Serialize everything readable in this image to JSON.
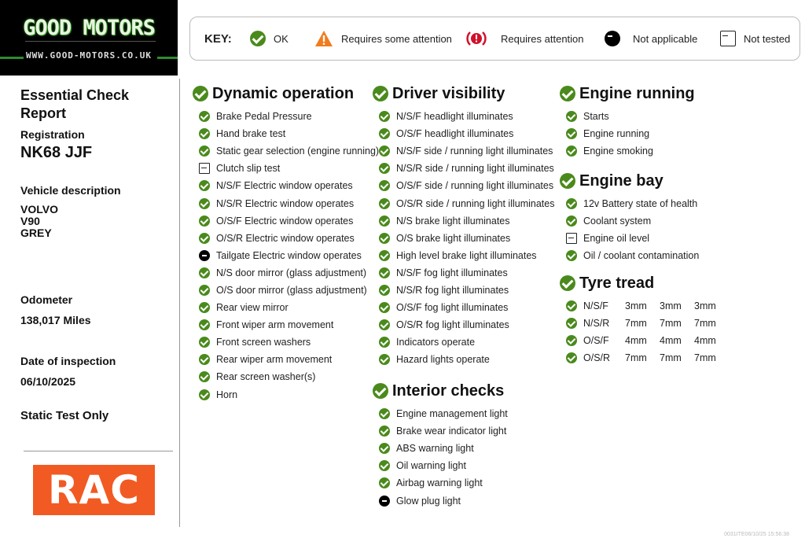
{
  "logo": {
    "name": "GOOD MOTORS",
    "url": "WWW.GOOD-MOTORS.CO.UK"
  },
  "key": {
    "title": "KEY:",
    "items": [
      {
        "icon": "ok",
        "label": "OK"
      },
      {
        "icon": "warning",
        "label": "Requires some attention"
      },
      {
        "icon": "alert",
        "label": "Requires attention"
      },
      {
        "icon": "not-applicable",
        "label": "Not applicable"
      },
      {
        "icon": "not-tested",
        "label": "Not tested"
      }
    ]
  },
  "report": {
    "title": "Essential Check Report",
    "registration_label": "Registration",
    "registration": "NK68 JJF",
    "vehicle_label": "Vehicle description",
    "make": "VOLVO",
    "model": "V90",
    "colour": "GREY",
    "odometer_label": "Odometer",
    "odometer": "138,017 Miles",
    "date_label": "Date of inspection",
    "date": "06/10/2025",
    "test_type": "Static Test Only"
  },
  "brand": "RAC",
  "colors": {
    "ok": "#4a8a1c",
    "warning": "#f07c1e",
    "alert": "#d0112b",
    "rac": "#f15a22"
  },
  "sections": {
    "dynamic": {
      "title": "Dynamic operation",
      "items": [
        {
          "s": "ok",
          "label": "Brake Pedal Pressure"
        },
        {
          "s": "ok",
          "label": "Hand brake test"
        },
        {
          "s": "ok",
          "label": "Static gear selection (engine running)"
        },
        {
          "s": "nt",
          "label": "Clutch slip test"
        },
        {
          "s": "ok",
          "label": "N/S/F Electric window operates"
        },
        {
          "s": "ok",
          "label": "N/S/R Electric window operates"
        },
        {
          "s": "ok",
          "label": "O/S/F Electric window operates"
        },
        {
          "s": "ok",
          "label": "O/S/R Electric window operates"
        },
        {
          "s": "na",
          "label": "Tailgate Electric window operates"
        },
        {
          "s": "ok",
          "label": "N/S door mirror (glass adjustment)"
        },
        {
          "s": "ok",
          "label": "O/S door mirror (glass adjustment)"
        },
        {
          "s": "ok",
          "label": "Rear view mirror"
        },
        {
          "s": "ok",
          "label": "Front wiper arm movement"
        },
        {
          "s": "ok",
          "label": "Front screen washers"
        },
        {
          "s": "ok",
          "label": "Rear wiper arm movement"
        },
        {
          "s": "ok",
          "label": "Rear screen washer(s)"
        },
        {
          "s": "ok",
          "label": "Horn"
        }
      ]
    },
    "visibility": {
      "title": "Driver visibility",
      "items": [
        {
          "s": "ok",
          "label": "N/S/F headlight illuminates"
        },
        {
          "s": "ok",
          "label": "O/S/F headlight illuminates"
        },
        {
          "s": "ok",
          "label": "N/S/F side / running light illuminates"
        },
        {
          "s": "ok",
          "label": "N/S/R side / running light illuminates"
        },
        {
          "s": "ok",
          "label": "O/S/F side / running light illuminates"
        },
        {
          "s": "ok",
          "label": "O/S/R side / running light illuminates"
        },
        {
          "s": "ok",
          "label": "N/S brake light illuminates"
        },
        {
          "s": "ok",
          "label": "O/S brake light illuminates"
        },
        {
          "s": "ok",
          "label": "High level brake light illuminates"
        },
        {
          "s": "ok",
          "label": "N/S/F fog light illuminates"
        },
        {
          "s": "ok",
          "label": "N/S/R fog light illuminates"
        },
        {
          "s": "ok",
          "label": "O/S/F fog light illuminates"
        },
        {
          "s": "ok",
          "label": "O/S/R fog light illuminates"
        },
        {
          "s": "ok",
          "label": "Indicators operate"
        },
        {
          "s": "ok",
          "label": "Hazard lights operate"
        }
      ]
    },
    "interior": {
      "title": "Interior checks",
      "items": [
        {
          "s": "ok",
          "label": "Engine management light"
        },
        {
          "s": "ok",
          "label": "Brake wear indicator light"
        },
        {
          "s": "ok",
          "label": "ABS warning light"
        },
        {
          "s": "ok",
          "label": "Oil warning light"
        },
        {
          "s": "ok",
          "label": "Airbag warning light"
        },
        {
          "s": "na",
          "label": "Glow plug light"
        }
      ]
    },
    "running": {
      "title": "Engine running",
      "items": [
        {
          "s": "ok",
          "label": "Starts"
        },
        {
          "s": "ok",
          "label": "Engine running"
        },
        {
          "s": "ok",
          "label": "Engine smoking"
        }
      ]
    },
    "bay": {
      "title": "Engine bay",
      "items": [
        {
          "s": "ok",
          "label": "12v Battery state of health"
        },
        {
          "s": "ok",
          "label": "Coolant system"
        },
        {
          "s": "nt",
          "label": "Engine oil level"
        },
        {
          "s": "ok",
          "label": "Oil / coolant contamination"
        }
      ]
    },
    "tyre": {
      "title": "Tyre tread",
      "items": [
        {
          "s": "ok",
          "label": "N/S/F",
          "v": [
            "3mm",
            "3mm",
            "3mm"
          ]
        },
        {
          "s": "ok",
          "label": "N/S/R",
          "v": [
            "7mm",
            "7mm",
            "7mm"
          ]
        },
        {
          "s": "ok",
          "label": "O/S/F",
          "v": [
            "4mm",
            "4mm",
            "4mm"
          ]
        },
        {
          "s": "ok",
          "label": "O/S/R",
          "v": [
            "7mm",
            "7mm",
            "7mm"
          ]
        }
      ]
    }
  },
  "footer_stamp": "0031ITE06/10/25 15:56:38"
}
